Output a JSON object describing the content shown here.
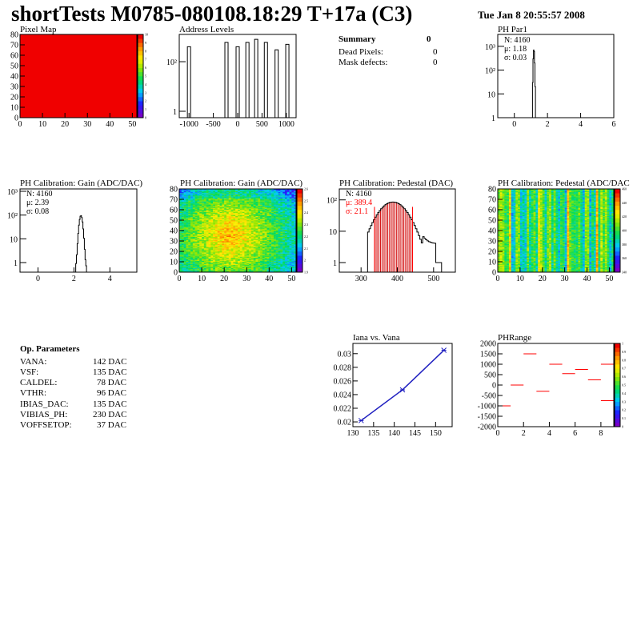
{
  "header": {
    "title": "shortTests M0785-080108.18:29 T+17a (C3)",
    "date": "Tue Jan  8 20:55:57 2008"
  },
  "summary": {
    "title": "Summary",
    "total": "0",
    "rows": [
      {
        "label": "Dead Pixels:",
        "value": "0"
      },
      {
        "label": "Mask defects:",
        "value": "0"
      }
    ]
  },
  "op_params": {
    "title": "Op. Parameters",
    "rows": [
      {
        "name": "VANA:",
        "value": "142 DAC"
      },
      {
        "name": "VSF:",
        "value": "135 DAC"
      },
      {
        "name": "CALDEL:",
        "value": "78 DAC"
      },
      {
        "name": "VTHR:",
        "value": "96 DAC"
      },
      {
        "name": "IBIAS_DAC:",
        "value": "135 DAC"
      },
      {
        "name": "VIBIAS_PH:",
        "value": "230 DAC"
      },
      {
        "name": "VOFFSETOP:",
        "value": "37 DAC"
      }
    ]
  },
  "stats": {
    "ph_par1": {
      "n": "N: 4160",
      "mu": "μ: 1.18",
      "sigma": "σ: 0.03"
    },
    "gain": {
      "n": "N: 4160",
      "mu": "μ: 2.39",
      "sigma": "σ: 0.08"
    },
    "pedestal": {
      "n": "N: 4160",
      "mu": "μ: 389.4",
      "sigma": "σ: 21.1"
    }
  },
  "colors": {
    "red": "#ff0000",
    "blue": "#2020c0"
  },
  "chart_data": [
    {
      "id": "pixel_map",
      "type": "heatmap",
      "title": "Pixel Map",
      "xlim": [
        0,
        52
      ],
      "ylim": [
        0,
        80
      ],
      "xticks": [
        "0",
        "10",
        "20",
        "30",
        "40",
        "50"
      ],
      "yticks": [
        "0",
        "10",
        "20",
        "30",
        "40",
        "50",
        "60",
        "70",
        "80"
      ],
      "zlim": [
        0,
        10
      ],
      "zticks": [
        "0",
        "1",
        "2",
        "3",
        "4",
        "5",
        "6",
        "7",
        "8",
        "9",
        "10"
      ],
      "fill_value": 10
    },
    {
      "id": "address_levels",
      "type": "bar",
      "title": "Address Levels",
      "xlim": [
        -1200,
        1200
      ],
      "log_y": true,
      "xticks": [
        "-1000",
        "-500",
        "0",
        "500",
        "1000"
      ],
      "yticks": [
        "1",
        "10²"
      ],
      "peaks": [
        {
          "x": -1000,
          "value": 400
        },
        {
          "x": -230,
          "value": 600
        },
        {
          "x": 0,
          "value": 400
        },
        {
          "x": 200,
          "value": 600
        },
        {
          "x": 380,
          "value": 800
        },
        {
          "x": 580,
          "value": 600
        },
        {
          "x": 800,
          "value": 300
        },
        {
          "x": 1020,
          "value": 500
        }
      ]
    },
    {
      "id": "ph_par1",
      "type": "bar",
      "title": "PH Par1",
      "xlim": [
        -1,
        6
      ],
      "log_y": true,
      "xticks": [
        "0",
        "2",
        "4",
        "6"
      ],
      "yticks": [
        "1",
        "10",
        "10²",
        "10³"
      ],
      "mean": 1.18,
      "sigma": 0.03,
      "entries": 4160
    },
    {
      "id": "gain_1d",
      "type": "bar",
      "title": "PH Calibration: Gain (ADC/DAC)",
      "xlim": [
        -1,
        5.5
      ],
      "log_y": true,
      "xticks": [
        "0",
        "2",
        "4"
      ],
      "yticks": [
        "1",
        "10",
        "10²",
        "10³"
      ],
      "mean": 2.39,
      "sigma": 0.08,
      "entries": 4160
    },
    {
      "id": "gain_map",
      "type": "heatmap",
      "title": "PH Calibration: Gain (ADC/DAC)",
      "xlim": [
        0,
        52
      ],
      "ylim": [
        0,
        80
      ],
      "xticks": [
        "0",
        "10",
        "20",
        "30",
        "40",
        "50"
      ],
      "yticks": [
        "0",
        "10",
        "20",
        "30",
        "40",
        "50",
        "60",
        "70",
        "80"
      ],
      "zticks": [
        "1.9",
        "2",
        "2.1",
        "2.2",
        "2.3",
        "2.4",
        "2.5",
        "2.6"
      ]
    },
    {
      "id": "pedestal_1d",
      "type": "bar",
      "title": "PH Calibration: Pedestal (DAC)",
      "xlim": [
        240,
        560
      ],
      "log_y": true,
      "xticks": [
        "300",
        "400",
        "500"
      ],
      "yticks": [
        "1",
        "10",
        "10²"
      ],
      "mean": 389.4,
      "sigma": 21.1,
      "entries": 4160,
      "cut_lines": [
        337,
        442
      ]
    },
    {
      "id": "pedestal_map",
      "type": "heatmap",
      "title": "PH Calibration: Pedestal (ADC/DAC",
      "xlim": [
        0,
        52
      ],
      "ylim": [
        0,
        80
      ],
      "xticks": [
        "0",
        "10",
        "20",
        "30",
        "40",
        "50"
      ],
      "yticks": [
        "0",
        "10",
        "20",
        "30",
        "40",
        "50",
        "60",
        "70",
        "80"
      ],
      "zticks": [
        "340",
        "360",
        "380",
        "400",
        "420",
        "440",
        "460"
      ]
    },
    {
      "id": "iana_vana",
      "type": "line",
      "title": "Iana vs. Vana",
      "x": [
        132,
        142,
        152
      ],
      "y": [
        0.0202,
        0.0247,
        0.0305
      ],
      "xlim": [
        130,
        154
      ],
      "ylim": [
        0.0193,
        0.0315
      ],
      "xticks": [
        "130",
        "135",
        "140",
        "145",
        "150"
      ],
      "yticks": [
        "0.02",
        "0.022",
        "0.024",
        "0.026",
        "0.028",
        "0.03"
      ]
    },
    {
      "id": "ph_range",
      "type": "scatter",
      "title": "PHRange",
      "xlim": [
        0,
        9
      ],
      "ylim": [
        -2000,
        2000
      ],
      "xticks": [
        "0",
        "2",
        "4",
        "6",
        "8"
      ],
      "yticks": [
        "-2000",
        "-1500",
        "-1000",
        "-500",
        "0",
        "500",
        "1000",
        "1500",
        "2000"
      ],
      "zticks": [
        "0",
        "0.1",
        "0.2",
        "0.3",
        "0.4",
        "0.5",
        "0.6",
        "0.7",
        "0.8",
        "0.9",
        "1"
      ],
      "x": [
        0.5,
        1.5,
        2.5,
        3.5,
        4.5,
        5.5,
        6.5,
        7.5,
        8.5
      ],
      "y": [
        -1000,
        0,
        1500,
        -300,
        1000,
        550,
        750,
        250,
        1000
      ],
      "extra": [
        {
          "x": 8.5,
          "y": -750
        }
      ]
    }
  ]
}
